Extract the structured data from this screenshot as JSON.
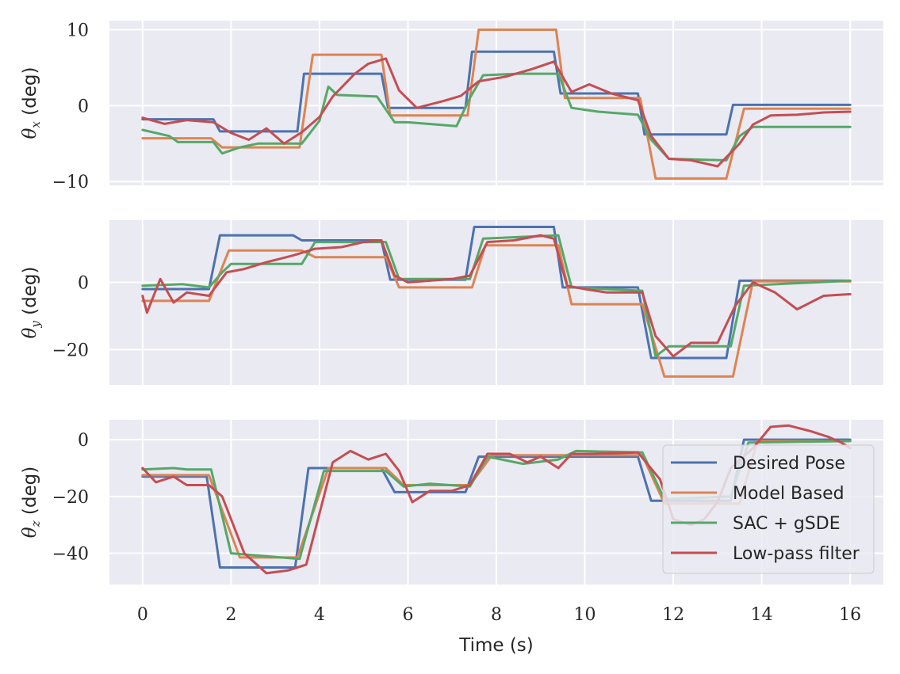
{
  "chart_data": {
    "type": "line",
    "xlabel": "Time (s)",
    "xlim": [
      -0.75,
      16.75
    ],
    "xticks": [
      0,
      2,
      4,
      6,
      8,
      10,
      12,
      14,
      16
    ],
    "xtick_labels": [
      "0",
      "2",
      "4",
      "6",
      "8",
      "10",
      "12",
      "14",
      "16"
    ],
    "grid": true,
    "legend": {
      "placement": "lower right of bottom panel",
      "entries": [
        "Desired Pose",
        "Model Based",
        "SAC + gSDE",
        "Low-pass filter"
      ]
    },
    "colors": {
      "Desired Pose": "#4c72b0",
      "Model Based": "#dd8452",
      "SAC + gSDE": "#55a868",
      "Low-pass filter": "#c44e52"
    },
    "panels": [
      {
        "ylabel_main": "θ",
        "ylabel_sub": "x",
        "ylabel_unit": "(deg)",
        "ylim": [
          -10.5,
          11.2
        ],
        "yticks": [
          -10,
          0,
          10
        ],
        "ytick_labels": [
          "−10",
          "0",
          "10"
        ],
        "series": [
          {
            "name": "Desired Pose",
            "x": [
              0,
              1.6,
              1.75,
              3.5,
              3.65,
              5.4,
              5.55,
              7.3,
              7.45,
              9.3,
              9.45,
              11.2,
              11.35,
              13.2,
              13.35,
              16
            ],
            "y": [
              -1.8,
              -1.8,
              -3.4,
              -3.4,
              4.2,
              4.2,
              -0.3,
              -0.3,
              7.1,
              7.1,
              1.6,
              1.6,
              -3.8,
              -3.8,
              0.1,
              0.1
            ]
          },
          {
            "name": "Model Based",
            "x": [
              0,
              1.55,
              1.8,
              3.55,
              3.85,
              5.4,
              5.6,
              7.35,
              7.6,
              9.35,
              9.55,
              11.25,
              11.6,
              13.2,
              13.6,
              16
            ],
            "y": [
              -4.3,
              -4.3,
              -5.5,
              -5.5,
              6.7,
              6.7,
              -1.3,
              -1.3,
              10.0,
              10.0,
              1.0,
              1.0,
              -9.6,
              -9.6,
              -0.4,
              -0.4
            ]
          },
          {
            "name": "SAC + gSDE",
            "x": [
              0,
              0.6,
              0.8,
              1.6,
              1.8,
              2.2,
              2.6,
              3.6,
              4.0,
              4.2,
              4.4,
              5.3,
              5.7,
              6.0,
              7.1,
              7.4,
              7.7,
              8.5,
              9.4,
              9.7,
              10.3,
              11.2,
              11.5,
              11.9,
              13.2,
              13.5,
              13.8,
              16
            ],
            "y": [
              -3.2,
              -4.0,
              -4.8,
              -4.8,
              -6.3,
              -5.5,
              -5.0,
              -5.0,
              -2.0,
              2.5,
              1.4,
              1.2,
              -2.2,
              -2.2,
              -2.7,
              1.0,
              4.0,
              4.2,
              4.2,
              -0.3,
              -0.8,
              -1.2,
              -4.5,
              -7.0,
              -7.2,
              -4.0,
              -2.8,
              -2.8
            ]
          },
          {
            "name": "Low-pass filter",
            "x": [
              0,
              0.5,
              1.0,
              1.6,
              2.0,
              2.4,
              2.8,
              3.2,
              3.6,
              4.0,
              4.3,
              4.8,
              5.1,
              5.5,
              5.8,
              6.2,
              6.8,
              7.2,
              7.6,
              8.2,
              8.8,
              9.3,
              9.7,
              10.1,
              10.6,
              11.2,
              11.5,
              11.9,
              12.4,
              13.0,
              13.5,
              13.8,
              14.2,
              14.8,
              15.4,
              16
            ],
            "y": [
              -1.6,
              -2.4,
              -1.9,
              -2.2,
              -3.6,
              -4.5,
              -3.0,
              -5.0,
              -3.5,
              -1.5,
              1.2,
              4.2,
              5.5,
              6.2,
              2.0,
              -0.3,
              0.6,
              1.3,
              3.2,
              3.8,
              4.8,
              5.8,
              1.8,
              2.8,
              1.6,
              0.7,
              -4.0,
              -7.0,
              -7.2,
              -8.0,
              -5.0,
              -2.5,
              -1.3,
              -1.2,
              -0.9,
              -0.8
            ]
          }
        ]
      },
      {
        "ylabel_main": "θ",
        "ylabel_sub": "y",
        "ylabel_unit": "(deg)",
        "ylim": [
          -30.5,
          18.5
        ],
        "yticks": [
          -20,
          0
        ],
        "ytick_labels": [
          "−20",
          "0"
        ],
        "series": [
          {
            "name": "Desired Pose",
            "x": [
              0,
              1.5,
              1.75,
              3.4,
              3.6,
              5.4,
              5.6,
              7.3,
              7.5,
              9.3,
              9.5,
              11.2,
              11.5,
              13.2,
              13.5,
              16
            ],
            "y": [
              -2,
              -2,
              14,
              14,
              12.5,
              12.5,
              0.8,
              0.8,
              16.5,
              16.5,
              -1.5,
              -1.5,
              -22.5,
              -22.5,
              0.5,
              0.5
            ]
          },
          {
            "name": "Model Based",
            "x": [
              0,
              1.5,
              1.95,
              3.6,
              3.9,
              5.5,
              5.8,
              7.45,
              7.75,
              9.4,
              9.7,
              11.3,
              11.8,
              13.35,
              13.8,
              16
            ],
            "y": [
              -5.5,
              -5.5,
              9.5,
              9.5,
              7.5,
              7.5,
              -1.5,
              -1.5,
              11.0,
              11.0,
              -6.5,
              -6.5,
              -28.0,
              -28.0,
              0.3,
              0.3
            ]
          },
          {
            "name": "SAC + gSDE",
            "x": [
              0,
              0.9,
              1.5,
              1.8,
              2.0,
              3.6,
              3.9,
              5.5,
              5.8,
              7.4,
              7.7,
              9.4,
              9.7,
              11.3,
              11.6,
              11.9,
              13.3,
              13.6,
              16
            ],
            "y": [
              -1,
              -0.5,
              -1.5,
              3,
              5.5,
              5.5,
              12.0,
              12.0,
              1.0,
              1.0,
              13.0,
              14.0,
              -1.5,
              -2.5,
              -22.0,
              -19.0,
              -19.0,
              -1.0,
              0.5
            ]
          },
          {
            "name": "Low-pass filter",
            "x": [
              0,
              0.1,
              0.4,
              0.7,
              1.0,
              1.5,
              1.9,
              2.3,
              2.8,
              3.4,
              3.9,
              4.5,
              5.0,
              5.4,
              5.7,
              6.0,
              6.5,
              7.0,
              7.4,
              7.8,
              8.4,
              9.0,
              9.3,
              9.6,
              10.0,
              10.5,
              11.3,
              11.6,
              12.0,
              12.4,
              13.0,
              13.4,
              13.8,
              14.3,
              14.8,
              15.4,
              16
            ],
            "y": [
              -4,
              -9,
              1,
              -6,
              -3,
              -4,
              3,
              4,
              6,
              8,
              10,
              10.5,
              12,
              12.5,
              2,
              0,
              0.5,
              1,
              2,
              12,
              12.5,
              14,
              13,
              -1,
              -2,
              -3,
              -3,
              -16,
              -22,
              -18,
              -18,
              -7,
              0,
              -3,
              -8,
              -4,
              -3.5
            ]
          }
        ]
      },
      {
        "ylabel_main": "θ",
        "ylabel_sub": "z",
        "ylabel_unit": "(deg)",
        "ylim": [
          -51,
          7
        ],
        "yticks": [
          -40,
          -20,
          0
        ],
        "ytick_labels": [
          "−40",
          "−20",
          "0"
        ],
        "series": [
          {
            "name": "Desired Pose",
            "x": [
              0,
              1.45,
              1.75,
              3.45,
              3.75,
              5.4,
              5.7,
              7.3,
              7.6,
              11.2,
              11.5,
              13.3,
              13.6,
              16
            ],
            "y": [
              -13,
              -13,
              -45,
              -45,
              -10,
              -10,
              -18.5,
              -18.5,
              -6,
              -6,
              -21.5,
              -21.5,
              0,
              0
            ]
          },
          {
            "name": "Model Based",
            "x": [
              0,
              1.5,
              2.2,
              3.5,
              4.2,
              5.5,
              5.9,
              7.4,
              7.9,
              11.3,
              11.8,
              13.5,
              13.9,
              16
            ],
            "y": [
              -12.5,
              -12.5,
              -41.5,
              -41.5,
              -10,
              -10,
              -16,
              -16,
              -5.5,
              -5.5,
              -22.5,
              -22.5,
              -0.5,
              -0.5
            ]
          },
          {
            "name": "SAC + gSDE",
            "x": [
              0,
              0.7,
              1.0,
              1.55,
              2.0,
              3.55,
              4.1,
              5.5,
              5.9,
              6.5,
              7.4,
              7.8,
              8.6,
              9.4,
              9.8,
              11.3,
              11.8,
              13.3,
              13.7,
              16
            ],
            "y": [
              -10.5,
              -10.0,
              -10.5,
              -10.5,
              -40,
              -42,
              -11,
              -11,
              -16.5,
              -15.5,
              -16.5,
              -6,
              -8.5,
              -7.0,
              -4.0,
              -4.5,
              -21,
              -20,
              -1,
              -0.5
            ]
          },
          {
            "name": "Low-pass filter",
            "x": [
              0,
              0.3,
              0.7,
              1.0,
              1.5,
              1.8,
              2.3,
              2.8,
              3.3,
              3.7,
              4.0,
              4.3,
              4.7,
              5.1,
              5.5,
              5.8,
              6.1,
              6.5,
              7.0,
              7.4,
              7.8,
              8.3,
              8.7,
              9.0,
              9.4,
              9.7,
              10.2,
              11.2,
              11.7,
              12.0,
              12.4,
              12.7,
              13.0,
              13.3,
              13.8,
              14.2,
              14.6,
              15.1,
              15.5,
              15.8,
              16
            ],
            "y": [
              -10,
              -15,
              -13,
              -16,
              -16,
              -20,
              -40,
              -47,
              -46,
              -44,
              -26,
              -8,
              -4,
              -7,
              -5,
              -11,
              -22,
              -18,
              -18,
              -16,
              -5,
              -5,
              -8,
              -6,
              -10,
              -5,
              -5,
              -4.5,
              -14,
              -28,
              -30,
              -28,
              -22,
              -10,
              -3,
              4.5,
              5,
              3,
              1,
              -1,
              -3
            ]
          }
        ]
      }
    ]
  }
}
